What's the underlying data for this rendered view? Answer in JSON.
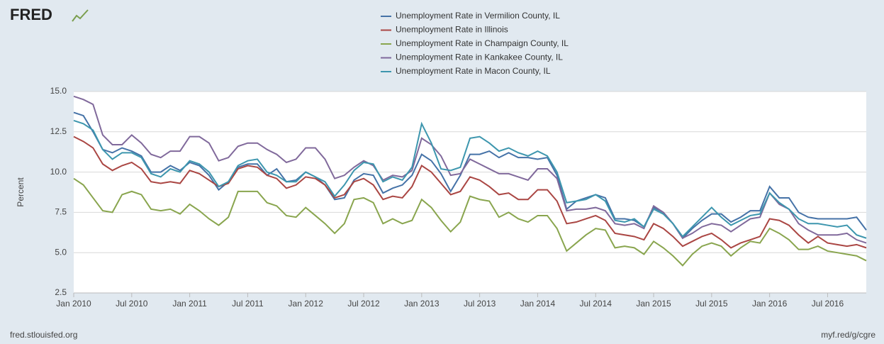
{
  "logo": "FRED",
  "footer": {
    "left": "fred.stlouisfed.org",
    "right": "myf.red/g/cgre"
  },
  "chart_data": {
    "type": "line",
    "y_label": "Percent",
    "x": [
      "2010-01",
      "2010-02",
      "2010-03",
      "2010-04",
      "2010-05",
      "2010-06",
      "2010-07",
      "2010-08",
      "2010-09",
      "2010-10",
      "2010-11",
      "2010-12",
      "2011-01",
      "2011-02",
      "2011-03",
      "2011-04",
      "2011-05",
      "2011-06",
      "2011-07",
      "2011-08",
      "2011-09",
      "2011-10",
      "2011-11",
      "2011-12",
      "2012-01",
      "2012-02",
      "2012-03",
      "2012-04",
      "2012-05",
      "2012-06",
      "2012-07",
      "2012-08",
      "2012-09",
      "2012-10",
      "2012-11",
      "2012-12",
      "2013-01",
      "2013-02",
      "2013-03",
      "2013-04",
      "2013-05",
      "2013-06",
      "2013-07",
      "2013-08",
      "2013-09",
      "2013-10",
      "2013-11",
      "2013-12",
      "2014-01",
      "2014-02",
      "2014-03",
      "2014-04",
      "2014-05",
      "2014-06",
      "2014-07",
      "2014-08",
      "2014-09",
      "2014-10",
      "2014-11",
      "2014-12",
      "2015-01",
      "2015-02",
      "2015-03",
      "2015-04",
      "2015-05",
      "2015-06",
      "2015-07",
      "2015-08",
      "2015-09",
      "2015-10",
      "2015-11",
      "2015-12",
      "2016-01",
      "2016-02",
      "2016-03",
      "2016-04",
      "2016-05",
      "2016-06",
      "2016-07",
      "2016-08",
      "2016-09",
      "2016-10",
      "2016-11"
    ],
    "xticks": [
      {
        "value": "2010-01",
        "label": "Jan 2010"
      },
      {
        "value": "2010-07",
        "label": "Jul 2010"
      },
      {
        "value": "2011-01",
        "label": "Jan 2011"
      },
      {
        "value": "2011-07",
        "label": "Jul 2011"
      },
      {
        "value": "2012-01",
        "label": "Jan 2012"
      },
      {
        "value": "2012-07",
        "label": "Jul 2012"
      },
      {
        "value": "2013-01",
        "label": "Jan 2013"
      },
      {
        "value": "2013-07",
        "label": "Jul 2013"
      },
      {
        "value": "2014-01",
        "label": "Jan 2014"
      },
      {
        "value": "2014-07",
        "label": "Jul 2014"
      },
      {
        "value": "2015-01",
        "label": "Jan 2015"
      },
      {
        "value": "2015-07",
        "label": "Jul 2015"
      },
      {
        "value": "2016-01",
        "label": "Jan 2016"
      },
      {
        "value": "2016-07",
        "label": "Jul 2016"
      }
    ],
    "ylim": [
      2.5,
      15
    ],
    "yticks": [
      2.5,
      {
        "value": 5,
        "label": "5.0"
      },
      7.5,
      {
        "value": 10,
        "label": "10.0"
      },
      12.5,
      {
        "value": 15,
        "label": "15.0"
      }
    ],
    "grid": true,
    "legend": "top",
    "series": [
      {
        "name": "Unemployment Rate in Vermilion County, IL",
        "color": "#4572a7",
        "values": [
          13.7,
          13.5,
          12.5,
          11.4,
          11.2,
          11.5,
          11.3,
          11.0,
          10.0,
          10.0,
          10.4,
          10.1,
          10.6,
          10.4,
          9.8,
          8.9,
          9.4,
          10.3,
          10.5,
          10.5,
          9.8,
          10.2,
          9.4,
          9.5,
          10.0,
          9.7,
          9.2,
          8.3,
          8.4,
          9.5,
          9.9,
          9.8,
          8.7,
          9.0,
          9.2,
          9.8,
          11.1,
          10.7,
          9.9,
          8.8,
          9.8,
          11.1,
          11.1,
          11.3,
          10.9,
          11.2,
          10.9,
          10.9,
          10.8,
          10.9,
          9.8,
          7.7,
          8.2,
          8.4,
          8.6,
          8.4,
          7.1,
          7.1,
          7.0,
          6.6,
          7.8,
          7.5,
          6.8,
          5.9,
          6.5,
          7.0,
          7.4,
          7.4,
          6.9,
          7.2,
          7.6,
          7.6,
          9.1,
          8.4,
          8.4,
          7.5,
          7.2,
          7.1,
          7.1,
          7.1,
          7.1,
          7.2,
          6.4
        ]
      },
      {
        "name": "Unemployment Rate in Illinois",
        "color": "#aa4643",
        "values": [
          12.2,
          11.9,
          11.5,
          10.5,
          10.1,
          10.4,
          10.6,
          10.2,
          9.4,
          9.3,
          9.4,
          9.3,
          10.1,
          9.9,
          9.5,
          9.1,
          9.3,
          10.2,
          10.4,
          10.3,
          9.8,
          9.6,
          9.0,
          9.2,
          9.7,
          9.6,
          9.2,
          8.4,
          8.6,
          9.4,
          9.6,
          9.2,
          8.3,
          8.5,
          8.4,
          9.1,
          10.4,
          10.0,
          9.3,
          8.6,
          8.8,
          9.7,
          9.5,
          9.1,
          8.6,
          8.7,
          8.3,
          8.3,
          8.9,
          8.9,
          8.2,
          6.8,
          6.9,
          7.1,
          7.3,
          7.0,
          6.2,
          6.1,
          6.0,
          5.8,
          6.8,
          6.5,
          6.0,
          5.4,
          5.7,
          6.0,
          6.2,
          5.8,
          5.3,
          5.6,
          5.8,
          6.0,
          7.1,
          7.0,
          6.7,
          6.1,
          5.6,
          6.0,
          5.6,
          5.5,
          5.4,
          5.5,
          5.3
        ]
      },
      {
        "name": "Unemployment Rate in Champaign County, IL",
        "color": "#89a54e",
        "values": [
          9.6,
          9.2,
          8.4,
          7.6,
          7.5,
          8.6,
          8.8,
          8.6,
          7.7,
          7.6,
          7.7,
          7.4,
          8.0,
          7.6,
          7.1,
          6.7,
          7.2,
          8.8,
          8.8,
          8.8,
          8.1,
          7.9,
          7.3,
          7.2,
          7.8,
          7.3,
          6.8,
          6.2,
          6.8,
          8.3,
          8.4,
          8.1,
          6.8,
          7.1,
          6.8,
          7.0,
          8.3,
          7.8,
          7.0,
          6.3,
          6.9,
          8.5,
          8.3,
          8.2,
          7.2,
          7.5,
          7.1,
          6.9,
          7.3,
          7.3,
          6.5,
          5.1,
          5.6,
          6.1,
          6.5,
          6.4,
          5.3,
          5.4,
          5.3,
          4.9,
          5.7,
          5.3,
          4.8,
          4.2,
          4.9,
          5.4,
          5.6,
          5.4,
          4.8,
          5.3,
          5.7,
          5.6,
          6.5,
          6.2,
          5.8,
          5.2,
          5.2,
          5.4,
          5.1,
          5.0,
          4.9,
          4.8,
          4.5
        ]
      },
      {
        "name": "Unemployment Rate in Kankakee County, IL",
        "color": "#80699b",
        "values": [
          14.7,
          14.5,
          14.2,
          12.3,
          11.7,
          11.7,
          12.3,
          11.8,
          11.1,
          10.9,
          11.3,
          11.3,
          12.2,
          12.2,
          11.8,
          10.7,
          10.9,
          11.6,
          11.8,
          11.8,
          11.4,
          11.1,
          10.6,
          10.8,
          11.5,
          11.5,
          10.8,
          9.6,
          9.8,
          10.3,
          10.7,
          10.4,
          9.5,
          9.8,
          9.7,
          10.1,
          12.1,
          11.7,
          11.0,
          9.8,
          9.9,
          10.8,
          10.5,
          10.2,
          9.9,
          9.9,
          9.7,
          9.5,
          10.2,
          10.2,
          9.6,
          7.6,
          7.7,
          7.7,
          7.8,
          7.6,
          6.8,
          6.7,
          6.8,
          6.5,
          7.9,
          7.5,
          6.8,
          5.9,
          6.2,
          6.6,
          6.8,
          6.7,
          6.3,
          6.7,
          7.1,
          7.2,
          8.7,
          8.0,
          7.7,
          6.8,
          6.4,
          6.1,
          6.1,
          6.1,
          6.2,
          5.8,
          5.6
        ]
      },
      {
        "name": "Unemployment Rate in Macon County, IL",
        "color": "#3d96ae",
        "values": [
          13.2,
          13.0,
          12.6,
          11.4,
          10.8,
          11.2,
          11.2,
          10.9,
          9.9,
          9.7,
          10.2,
          10.0,
          10.7,
          10.5,
          10.0,
          9.1,
          9.4,
          10.4,
          10.7,
          10.8,
          10.0,
          9.8,
          9.4,
          9.4,
          10.0,
          9.7,
          9.4,
          8.5,
          9.2,
          10.1,
          10.6,
          10.5,
          9.4,
          9.7,
          9.5,
          10.3,
          13.0,
          11.8,
          10.2,
          10.1,
          10.3,
          12.1,
          12.2,
          11.8,
          11.3,
          11.5,
          11.2,
          11.0,
          11.3,
          11.0,
          10.0,
          8.1,
          8.2,
          8.3,
          8.6,
          8.2,
          7.0,
          6.9,
          7.1,
          6.6,
          7.7,
          7.4,
          6.8,
          6.0,
          6.6,
          7.2,
          7.8,
          7.2,
          6.7,
          7.0,
          7.3,
          7.4,
          8.7,
          8.1,
          7.7,
          7.1,
          6.8,
          6.8,
          6.7,
          6.6,
          6.7,
          6.1,
          5.9
        ]
      }
    ]
  }
}
